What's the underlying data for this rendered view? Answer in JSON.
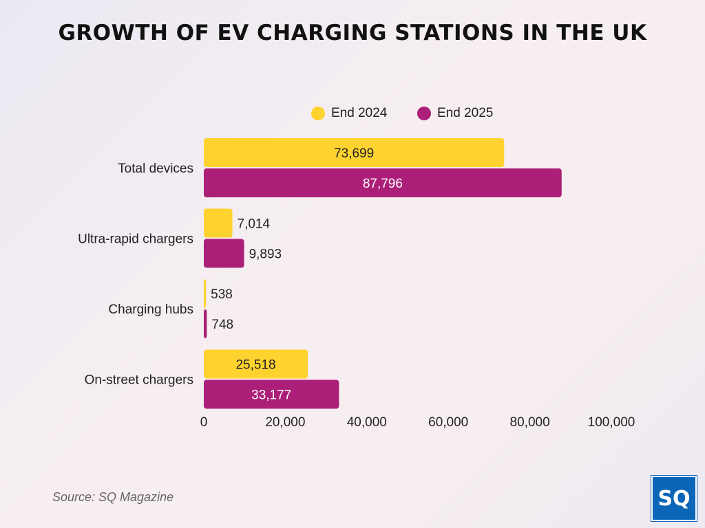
{
  "chart_data": {
    "type": "bar",
    "orientation": "horizontal",
    "title": "GROWTH OF EV CHARGING STATIONS IN THE UK",
    "categories": [
      "Total devices",
      "Ultra-rapid chargers",
      "Charging hubs",
      "On-street chargers"
    ],
    "series": [
      {
        "name": "End 2024",
        "values": [
          73699,
          7014,
          538,
          25518
        ],
        "labels": [
          "73,699",
          "7,014",
          "538",
          "25,518"
        ],
        "color": "#fed330"
      },
      {
        "name": "End 2025",
        "values": [
          87796,
          9893,
          748,
          33177
        ],
        "labels": [
          "87,796",
          "9,893",
          "748",
          "33,177"
        ],
        "color": "#ab1f78"
      }
    ],
    "xlim": [
      0,
      100000
    ],
    "xticks": [
      "0",
      "20,000",
      "40,000",
      "60,000",
      "80,000",
      "100,000"
    ],
    "grid": false,
    "legend": "top-center"
  },
  "source": "Source: SQ Magazine",
  "logo_text": "SQ"
}
